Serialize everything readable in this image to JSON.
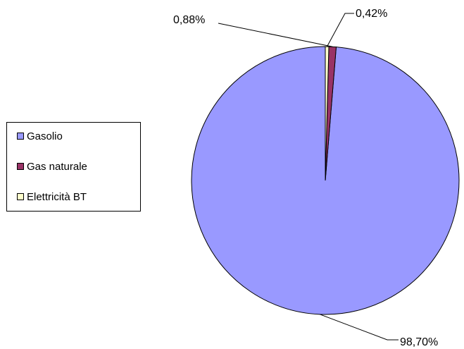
{
  "chart_data": {
    "type": "pie",
    "categories": [
      "Gasolio",
      "Gas naturale",
      "Elettricità BT"
    ],
    "values": [
      98.7,
      0.88,
      0.42
    ],
    "data_labels": [
      "98,70%",
      "0,88%",
      "0,42%"
    ],
    "colors": [
      "#9999ff",
      "#993366",
      "#ffffcc"
    ],
    "title": "",
    "legend": {
      "placement": "left",
      "border": true
    },
    "start_angle": "12 o'clock",
    "direction": "counter-clockwise"
  }
}
